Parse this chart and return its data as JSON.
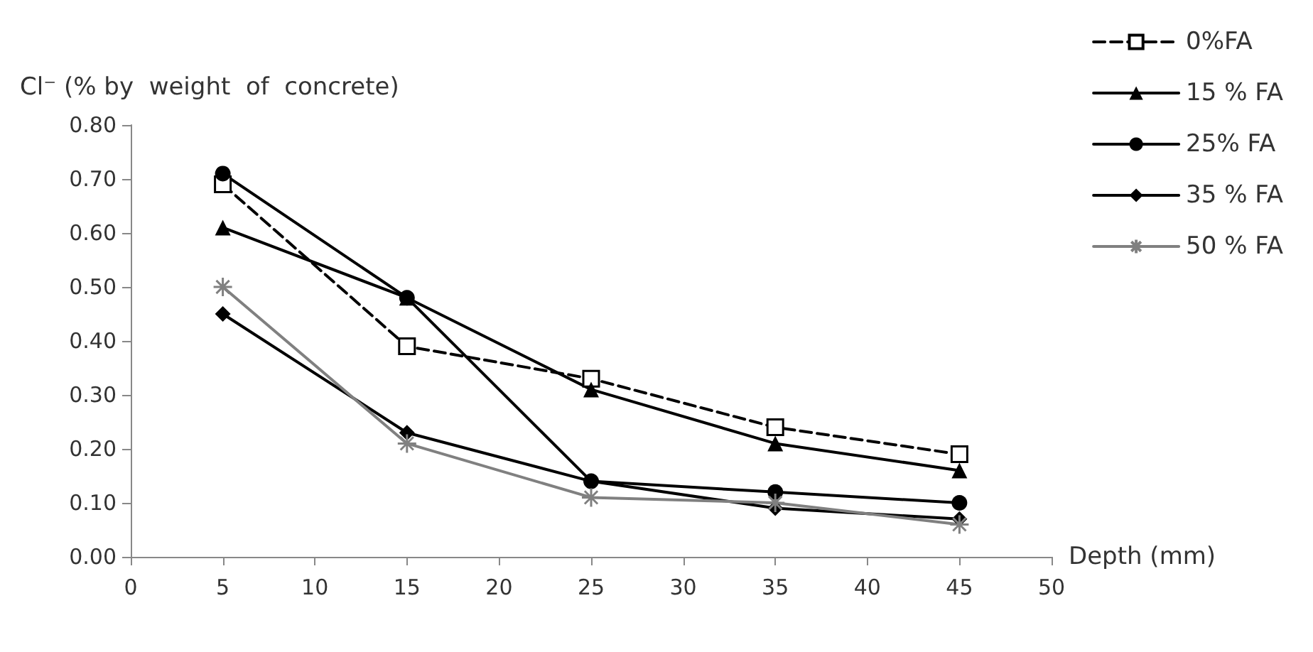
{
  "chart_data": {
    "type": "line",
    "ylabel": "Cl⁻ (% by  weight  of  concrete)",
    "xlabel": "Depth (mm)",
    "x": [
      5,
      15,
      25,
      35,
      45
    ],
    "series": [
      {
        "name": "0%FA",
        "color": "#000000",
        "marker": "square",
        "line_style": "dashed",
        "values": [
          0.69,
          0.39,
          0.33,
          0.24,
          0.19
        ]
      },
      {
        "name": "15 % FA",
        "color": "#000000",
        "marker": "triangle",
        "line_style": "solid",
        "values": [
          0.61,
          0.48,
          0.31,
          0.21,
          0.16
        ]
      },
      {
        "name": "25% FA",
        "color": "#000000",
        "marker": "circle",
        "line_style": "solid",
        "values": [
          0.71,
          0.48,
          0.14,
          0.12,
          0.1
        ]
      },
      {
        "name": "35 % FA",
        "color": "#000000",
        "marker": "diamond",
        "line_style": "solid",
        "values": [
          0.45,
          0.23,
          0.14,
          0.09,
          0.07
        ]
      },
      {
        "name": "50 % FA",
        "color": "#808080",
        "marker": "cross",
        "line_style": "solid",
        "values": [
          0.5,
          0.21,
          0.11,
          0.1,
          0.06
        ]
      }
    ],
    "xlim": [
      0,
      50
    ],
    "xticks": [
      0,
      5,
      10,
      15,
      20,
      25,
      30,
      35,
      40,
      45,
      50
    ],
    "ylim": [
      0,
      0.8
    ],
    "yticks": [
      {
        "value": 0,
        "label": "0.00"
      },
      {
        "value": 0.1,
        "label": "0.10"
      },
      {
        "value": 0.2,
        "label": "0.20"
      },
      {
        "value": 0.3,
        "label": "0.30"
      },
      {
        "value": 0.4,
        "label": "0.40"
      },
      {
        "value": 0.5,
        "label": "0.50"
      },
      {
        "value": 0.6,
        "label": "0.60"
      },
      {
        "value": 0.7,
        "label": "0.70"
      },
      {
        "value": 0.8,
        "label": "0.80"
      }
    ],
    "grid": false,
    "legend": "right"
  }
}
